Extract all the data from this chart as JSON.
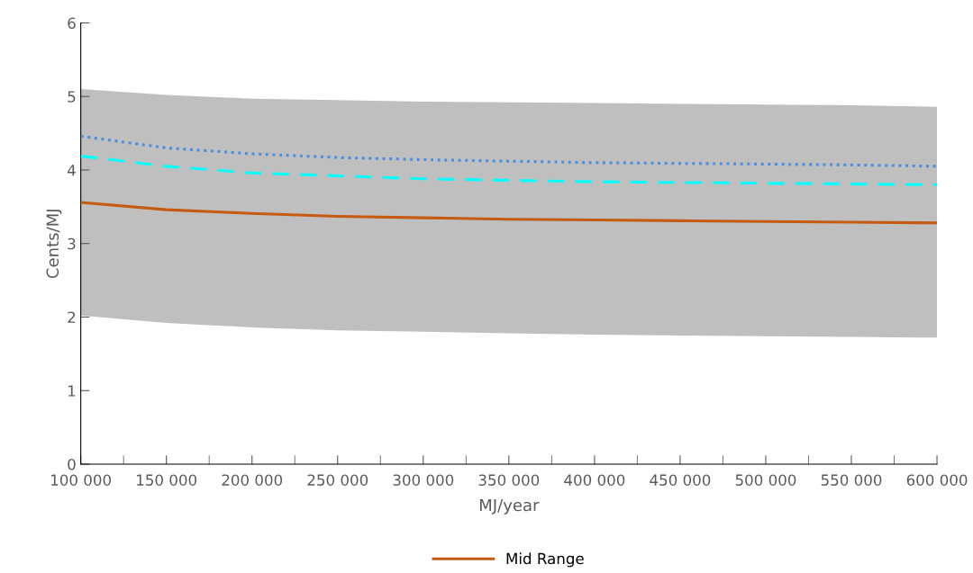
{
  "chart_data": {
    "type": "line",
    "xlabel": "MJ/year",
    "ylabel": "Cents/MJ",
    "x": [
      100000,
      150000,
      200000,
      250000,
      300000,
      350000,
      400000,
      450000,
      500000,
      550000,
      600000
    ],
    "xlim": [
      100000,
      600000
    ],
    "xticks": [
      {
        "value": 100000,
        "label": "100 000"
      },
      {
        "value": 150000,
        "label": "150 000"
      },
      {
        "value": 200000,
        "label": "200 000"
      },
      {
        "value": 250000,
        "label": "250 000"
      },
      {
        "value": 300000,
        "label": "300 000"
      },
      {
        "value": 350000,
        "label": "350 000"
      },
      {
        "value": 400000,
        "label": "400 000"
      },
      {
        "value": 450000,
        "label": "450 000"
      },
      {
        "value": 500000,
        "label": "500 000"
      },
      {
        "value": 550000,
        "label": "550 000"
      },
      {
        "value": 600000,
        "label": "600 000"
      }
    ],
    "ylim": [
      0,
      6
    ],
    "yticks": [
      0,
      1,
      2,
      3,
      4,
      5,
      6
    ],
    "grid": false,
    "legend": "bottom",
    "marker": "none",
    "series": [
      {
        "color": "#00ffff",
        "line_style": "dashed",
        "values": [
          4.19,
          4.05,
          3.96,
          3.92,
          3.88,
          3.86,
          3.84,
          3.83,
          3.82,
          3.81,
          3.8
        ]
      },
      {
        "color": "#4a8fe0",
        "line_style": "dotted",
        "values": [
          4.46,
          4.3,
          4.22,
          4.17,
          4.14,
          4.12,
          4.1,
          4.09,
          4.08,
          4.07,
          4.05
        ]
      },
      {
        "name": "Mid Range",
        "color": "#c55a11",
        "line_style": "solid",
        "values": [
          3.56,
          3.46,
          3.41,
          3.37,
          3.35,
          3.33,
          3.32,
          3.31,
          3.3,
          3.29,
          3.28
        ],
        "lower": [
          2.02,
          1.92,
          1.86,
          1.82,
          1.8,
          1.78,
          1.76,
          1.75,
          1.74,
          1.73,
          1.72
        ],
        "upper": [
          5.1,
          5.02,
          4.97,
          4.95,
          4.93,
          4.92,
          4.91,
          4.9,
          4.89,
          4.88,
          4.86
        ]
      }
    ]
  }
}
